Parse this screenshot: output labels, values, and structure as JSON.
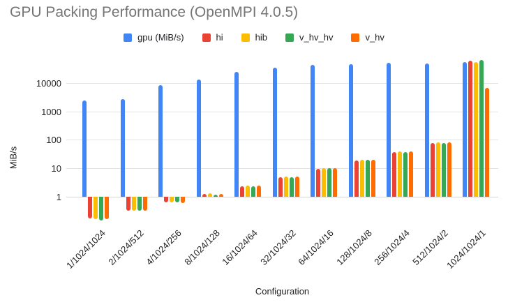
{
  "title": "GPU Packing Performance (OpenMPI 4.0.5)",
  "colors": {
    "background": "#FFFFFF",
    "title_text": "#757575",
    "axis_text": "#202124",
    "gridline": "#E3E3E3",
    "baseline_line": "#D6D6D6"
  },
  "chart_data": {
    "type": "bar",
    "title": "GPU Packing Performance (OpenMPI 4.0.5)",
    "xlabel": "Configuration",
    "ylabel": "MiB/s",
    "scale": "log10",
    "grid": true,
    "legend_position": "top-center",
    "baseline_value": 1,
    "y_ticks": [
      1,
      10,
      100,
      1000,
      10000
    ],
    "ylim_displayed": [
      0.12,
      68000
    ],
    "categories": [
      "1/1024/1024",
      "2/1024/512",
      "4/1024/256",
      "8/1024/128",
      "16/1024/64",
      "32/1024/32",
      "64/1024/16",
      "128/1024/8",
      "256/1024/4",
      "512/1024/2",
      "1024/1024/1"
    ],
    "series": [
      {
        "name": "gpu (MiB/s)",
        "color": "#4285F4",
        "values": [
          2400,
          2700,
          8500,
          13000,
          24000,
          35000,
          43000,
          45000,
          50000,
          47000,
          54000
        ]
      },
      {
        "name": "hi",
        "color": "#EA4335",
        "values": [
          0.17,
          0.33,
          0.65,
          1.27,
          2.35,
          4.9,
          9.8,
          19,
          37,
          76,
          60000
        ]
      },
      {
        "name": "hib",
        "color": "#FBBC04",
        "values": [
          0.16,
          0.32,
          0.63,
          1.3,
          2.4,
          5.0,
          10,
          20,
          40,
          80,
          55000
        ]
      },
      {
        "name": "v_hv_hv",
        "color": "#34A853",
        "values": [
          0.15,
          0.32,
          0.62,
          1.2,
          2.35,
          4.9,
          10,
          20,
          38,
          78,
          63000
        ]
      },
      {
        "name": "v_hv",
        "color": "#FF6D01",
        "values": [
          0.16,
          0.33,
          0.6,
          1.25,
          2.4,
          5.0,
          10,
          20,
          40,
          80,
          6500
        ]
      }
    ]
  }
}
